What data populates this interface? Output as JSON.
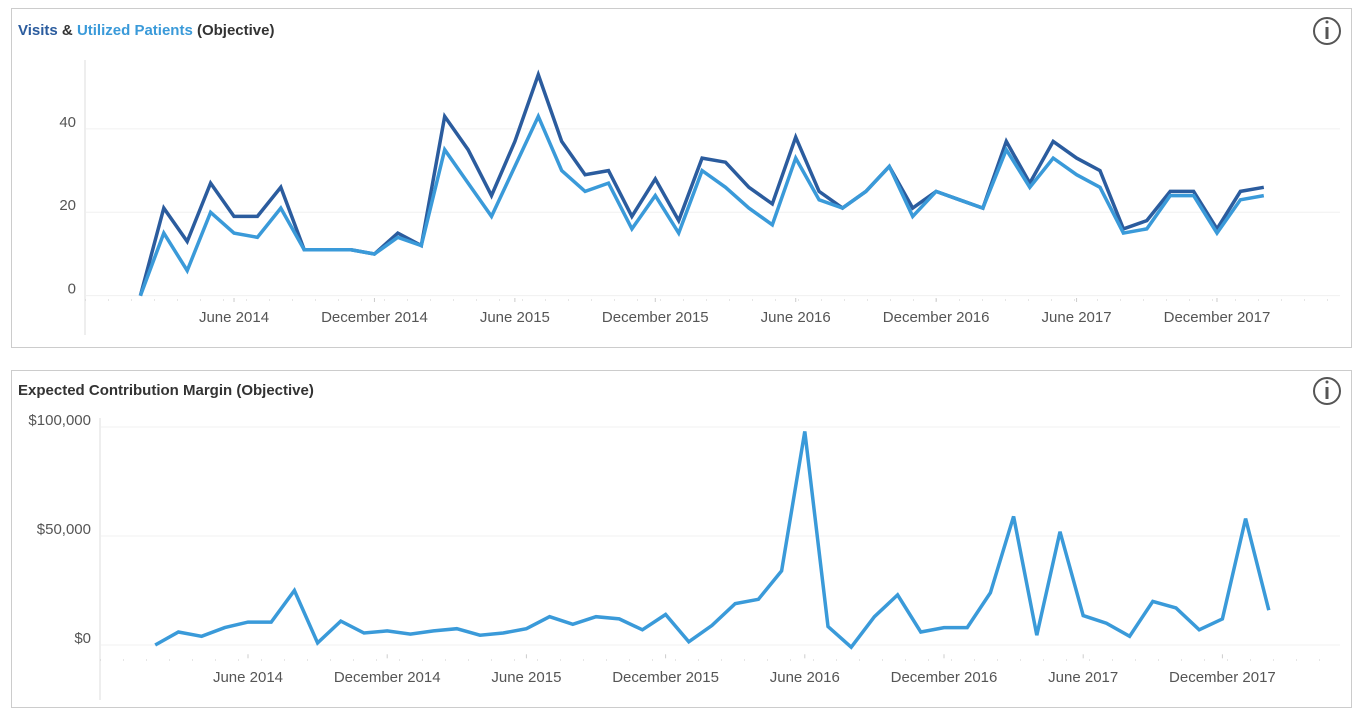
{
  "chart_data": [
    {
      "type": "line",
      "title_connector": "&",
      "title_suffix": "(Objective)",
      "x": [
        "2014-02",
        "2014-03",
        "2014-04",
        "2014-05",
        "2014-06",
        "2014-07",
        "2014-08",
        "2014-09",
        "2014-10",
        "2014-11",
        "2014-12",
        "2015-01",
        "2015-02",
        "2015-03",
        "2015-04",
        "2015-05",
        "2015-06",
        "2015-07",
        "2015-08",
        "2015-09",
        "2015-10",
        "2015-11",
        "2015-12",
        "2016-01",
        "2016-02",
        "2016-03",
        "2016-04",
        "2016-05",
        "2016-06",
        "2016-07",
        "2016-08",
        "2016-09",
        "2016-10",
        "2016-11",
        "2016-12",
        "2017-01",
        "2017-02",
        "2017-03",
        "2017-04",
        "2017-05",
        "2017-06",
        "2017-07",
        "2017-08",
        "2017-09",
        "2017-10",
        "2017-11",
        "2017-12",
        "2018-01",
        "2018-02"
      ],
      "series": [
        {
          "name": "Visits",
          "color": "#2b5c9e",
          "values": [
            0,
            21,
            13,
            27,
            19,
            19,
            26,
            11,
            11,
            11,
            10,
            15,
            12,
            43,
            35,
            24,
            37,
            53,
            37,
            29,
            30,
            19,
            28,
            18,
            33,
            32,
            26,
            22,
            38,
            25,
            21,
            25,
            31,
            21,
            25,
            23,
            21,
            37,
            27,
            37,
            33,
            30,
            16,
            18,
            25,
            25,
            16,
            25,
            26
          ]
        },
        {
          "name": "Utilized Patients",
          "color": "#3a9ad9",
          "values": [
            0,
            15,
            6,
            20,
            15,
            14,
            21,
            11,
            11,
            11,
            10,
            14,
            12,
            35,
            27,
            19,
            31,
            43,
            30,
            25,
            27,
            16,
            24,
            15,
            30,
            26,
            21,
            17,
            33,
            23,
            21,
            25,
            31,
            19,
            25,
            23,
            21,
            35,
            26,
            33,
            29,
            26,
            15,
            16,
            24,
            24,
            15,
            23,
            24
          ]
        }
      ],
      "xlim": [
        "2013-12",
        "2018-05"
      ],
      "xticks": [
        {
          "value": "2014-06",
          "label": "June 2014"
        },
        {
          "value": "2014-12",
          "label": "December 2014"
        },
        {
          "value": "2015-06",
          "label": "June 2015"
        },
        {
          "value": "2015-12",
          "label": "December 2015"
        },
        {
          "value": "2016-06",
          "label": "June 2016"
        },
        {
          "value": "2016-12",
          "label": "December 2016"
        },
        {
          "value": "2017-06",
          "label": "June 2017"
        },
        {
          "value": "2017-12",
          "label": "December 2017"
        }
      ],
      "ylim": [
        -2,
        57
      ],
      "yticks": [
        0,
        20,
        40
      ],
      "grid": true
    },
    {
      "type": "line",
      "title": "Expected Contribution Margin (Objective)",
      "x": [
        "2014-02",
        "2014-03",
        "2014-04",
        "2014-05",
        "2014-06",
        "2014-07",
        "2014-08",
        "2014-09",
        "2014-10",
        "2014-11",
        "2014-12",
        "2015-01",
        "2015-02",
        "2015-03",
        "2015-04",
        "2015-05",
        "2015-06",
        "2015-07",
        "2015-08",
        "2015-09",
        "2015-10",
        "2015-11",
        "2015-12",
        "2016-01",
        "2016-02",
        "2016-03",
        "2016-04",
        "2016-05",
        "2016-06",
        "2016-07",
        "2016-08",
        "2016-09",
        "2016-10",
        "2016-11",
        "2016-12",
        "2017-01",
        "2017-02",
        "2017-03",
        "2017-04",
        "2017-05",
        "2017-06",
        "2017-07",
        "2017-08",
        "2017-09",
        "2017-10",
        "2017-11",
        "2017-12",
        "2018-01",
        "2018-02"
      ],
      "series": [
        {
          "name": "Expected Contribution Margin",
          "color": "#3a9ad9",
          "values": [
            0,
            6000,
            4000,
            8000,
            10500,
            10500,
            25000,
            1000,
            11000,
            5500,
            6500,
            5000,
            6500,
            7500,
            4500,
            5500,
            7500,
            13000,
            9500,
            13000,
            12000,
            7000,
            14000,
            1500,
            9000,
            19000,
            21000,
            34000,
            98000,
            8500,
            -1000,
            13000,
            23000,
            6000,
            8000,
            8000,
            24000,
            59000,
            4500,
            52000,
            13500,
            10000,
            4000,
            20000,
            17000,
            7000,
            12000,
            58000,
            16000
          ]
        }
      ],
      "xlim": [
        "2013-12",
        "2018-05"
      ],
      "xticks": [
        {
          "value": "2014-06",
          "label": "June 2014"
        },
        {
          "value": "2014-12",
          "label": "December 2014"
        },
        {
          "value": "2015-06",
          "label": "June 2015"
        },
        {
          "value": "2015-12",
          "label": "December 2015"
        },
        {
          "value": "2016-06",
          "label": "June 2016"
        },
        {
          "value": "2016-12",
          "label": "December 2016"
        },
        {
          "value": "2017-06",
          "label": "June 2017"
        },
        {
          "value": "2017-12",
          "label": "December 2017"
        }
      ],
      "ylim": [
        -7000,
        105000
      ],
      "yticks": [
        {
          "value": 0,
          "label": "$0"
        },
        {
          "value": 50000,
          "label": "$50,000"
        },
        {
          "value": 100000,
          "label": "$100,000"
        }
      ],
      "grid": true
    }
  ]
}
